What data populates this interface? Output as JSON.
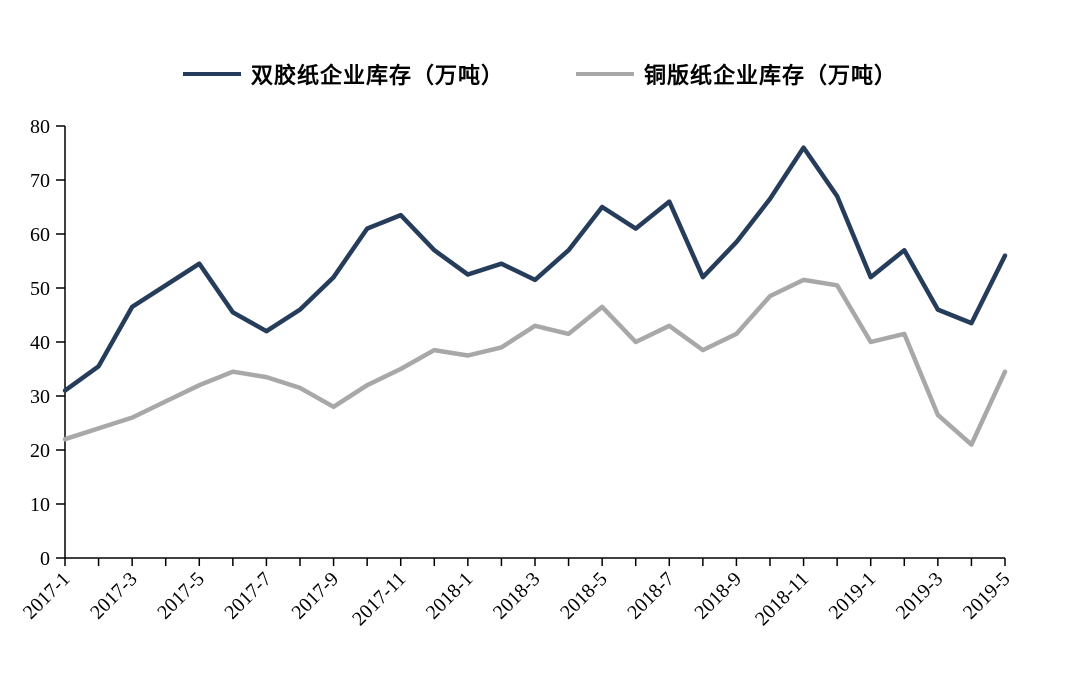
{
  "chart_data": {
    "type": "line",
    "title": "",
    "xlabel": "",
    "ylabel": "",
    "grid": false,
    "legend_position": "top",
    "ylim": [
      0,
      80
    ],
    "ytick_step": 10,
    "tick_every": 2,
    "axis_color": "#000000",
    "x": [
      "2017-1",
      "2017-2",
      "2017-3",
      "2017-4",
      "2017-5",
      "2017-6",
      "2017-7",
      "2017-8",
      "2017-9",
      "2017-10",
      "2017-11",
      "2017-12",
      "2018-1",
      "2018-2",
      "2018-3",
      "2018-4",
      "2018-5",
      "2018-6",
      "2018-7",
      "2018-8",
      "2018-9",
      "2018-10",
      "2018-11",
      "2018-12",
      "2019-1",
      "2019-2",
      "2019-3",
      "2019-4",
      "2019-5"
    ],
    "series": [
      {
        "name": "双胶纸企业库存（万吨）",
        "color": "#253c5a",
        "values": [
          31,
          35.5,
          46.5,
          50.5,
          54.5,
          45.5,
          42,
          46,
          52,
          61,
          63.5,
          57,
          52.5,
          54.5,
          51.5,
          57,
          65,
          61,
          66,
          52,
          58.5,
          66.5,
          76,
          67,
          52,
          57,
          46,
          43.5,
          56
        ]
      },
      {
        "name": "铜版纸企业库存（万吨）",
        "color": "#a8a8a8",
        "values": [
          22,
          24,
          26,
          29,
          32,
          34.5,
          33.5,
          31.5,
          28,
          32,
          35,
          38.5,
          37.5,
          39,
          43,
          41.5,
          46.5,
          40,
          43,
          38.5,
          41.5,
          48.5,
          51.5,
          50.5,
          40,
          41.5,
          26.5,
          21,
          34.5
        ]
      }
    ]
  }
}
